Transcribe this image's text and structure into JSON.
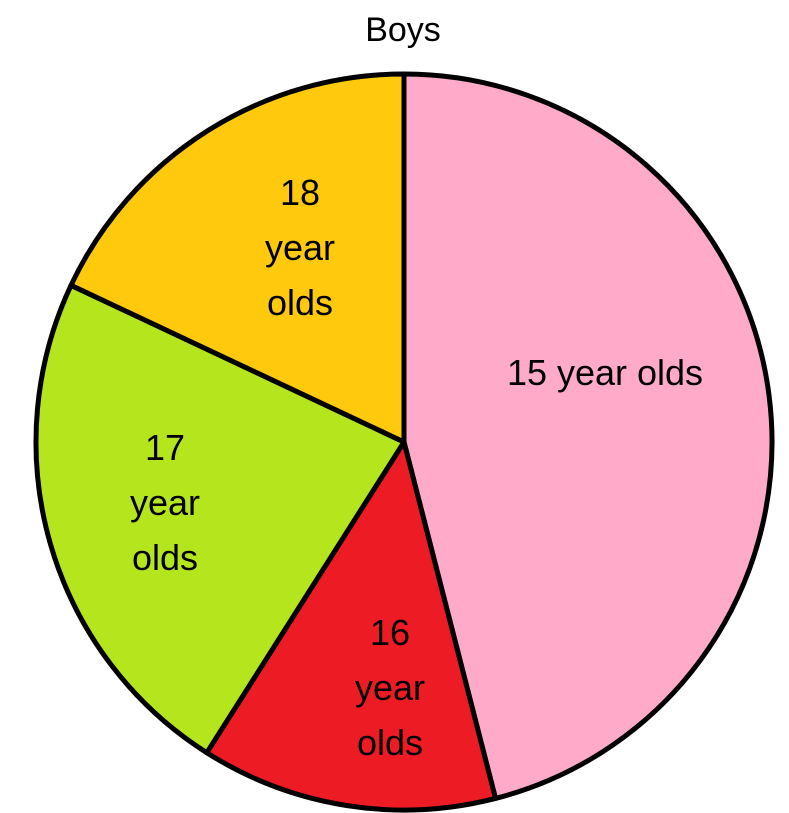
{
  "chart_data": {
    "type": "pie",
    "title": "Boys",
    "categories": [
      "15 year olds",
      "16 year olds",
      "17 year olds",
      "18 year olds"
    ],
    "values": [
      46,
      13,
      23,
      18
    ],
    "colors": [
      "#ffaac9",
      "#ed1c24",
      "#b5e61d",
      "#ffc90e"
    ]
  }
}
